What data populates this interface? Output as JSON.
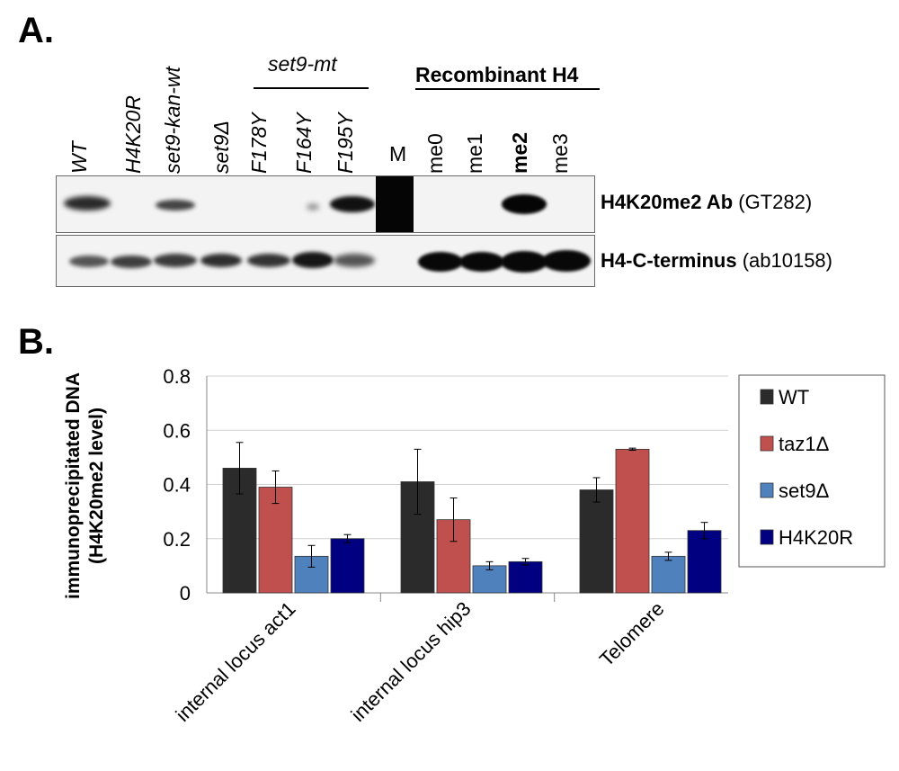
{
  "panel_a": {
    "label": "A.",
    "lanes": [
      {
        "text": "WT",
        "italic": true
      },
      {
        "text": "H4K20R",
        "italic": true
      },
      {
        "text": "set9-kan-wt",
        "italic": true
      },
      {
        "text": "set9Δ",
        "italic": true
      },
      {
        "text": "F178Y",
        "italic": true
      },
      {
        "text": "F164Y",
        "italic": true
      },
      {
        "text": "F195Y",
        "italic": true
      },
      {
        "text": "M",
        "italic": false,
        "upright": true
      },
      {
        "text": "me0",
        "italic": false
      },
      {
        "text": "me1",
        "italic": false
      },
      {
        "text": "me2",
        "italic": false,
        "bold": true
      },
      {
        "text": "me3",
        "italic": false
      }
    ],
    "group_mutant": "set9-mt",
    "group_recombinant": "Recombinant H4",
    "blot_top_label_bold": "H4K20me2 Ab",
    "blot_top_label_normal": " (GT282)",
    "blot_bottom_label_bold": "H4-C-terminus",
    "blot_bottom_label_normal": " (ab10158)"
  },
  "panel_b": {
    "label": "B."
  },
  "chart_data": {
    "type": "bar",
    "categories": [
      "internal locus act1",
      "internal locus hip3",
      "Telomere"
    ],
    "series": [
      {
        "name": "WT",
        "color": "#2b2b2b",
        "values": [
          0.46,
          0.41,
          0.38
        ],
        "errors": [
          0.095,
          0.12,
          0.045
        ]
      },
      {
        "name": "taz1Δ",
        "color": "#c0504d",
        "values": [
          0.39,
          0.27,
          0.53
        ],
        "errors": [
          0.06,
          0.08,
          0.004
        ]
      },
      {
        "name": "set9Δ",
        "color": "#4f81bd",
        "values": [
          0.135,
          0.1,
          0.135
        ],
        "errors": [
          0.04,
          0.015,
          0.015
        ]
      },
      {
        "name": "H4K20R",
        "color": "#000080",
        "values": [
          0.2,
          0.115,
          0.23
        ],
        "errors": [
          0.015,
          0.012,
          0.03
        ]
      }
    ],
    "ylabel_line1": "immunoprecipitated DNA",
    "ylabel_line2": "(H4K20me2 level)",
    "ylim": [
      0,
      0.8
    ],
    "yticks": [
      "0",
      "0.2",
      "0.4",
      "0.6",
      "0.8"
    ],
    "grid": true,
    "legend": "right"
  }
}
